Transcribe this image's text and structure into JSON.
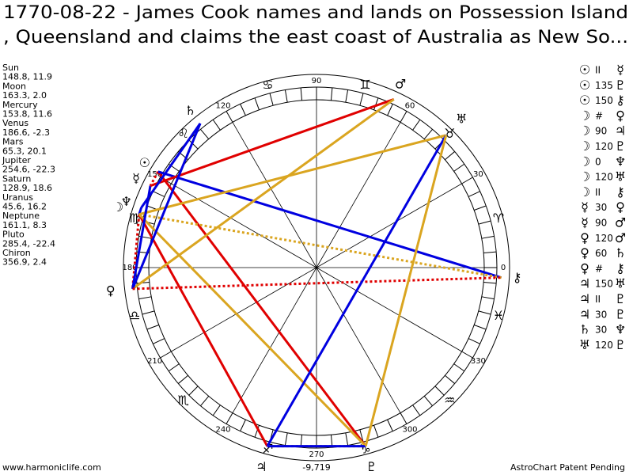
{
  "header": {
    "title_line1": "1770-08-22 - James Cook names and lands on Possession Island",
    "title_line2": ", Queensland and claims the east coast of Australia as New So..."
  },
  "planets": [
    {
      "name": "Sun",
      "glyph": "☉",
      "longitude": 148.8,
      "latitude": 11.9,
      "label": "148.8, 11.9"
    },
    {
      "name": "Moon",
      "glyph": "☽",
      "longitude": 163.3,
      "latitude": 2,
      "label": "163.3, 2.0"
    },
    {
      "name": "Mercury",
      "glyph": "☿",
      "longitude": 153.8,
      "latitude": 11.6,
      "label": "153.8, 11.6"
    },
    {
      "name": "Venus",
      "glyph": "♀",
      "longitude": 186.6,
      "latitude": -2.3,
      "label": "186.6, -2.3"
    },
    {
      "name": "Mars",
      "glyph": "♂",
      "longitude": 65.3,
      "latitude": 20.1,
      "label": "65.3, 20.1"
    },
    {
      "name": "Jupiter",
      "glyph": "♃",
      "longitude": 254.6,
      "latitude": -22.3,
      "label": "254.6, -22.3"
    },
    {
      "name": "Saturn",
      "glyph": "♄",
      "longitude": 128.9,
      "latitude": 18.6,
      "label": "128.9, 18.6"
    },
    {
      "name": "Uranus",
      "glyph": "♅",
      "longitude": 45.6,
      "latitude": 16.2,
      "label": "45.6, 16.2"
    },
    {
      "name": "Neptune",
      "glyph": "♆",
      "longitude": 161.1,
      "latitude": 8.3,
      "label": "161.1, 8.3"
    },
    {
      "name": "Pluto",
      "glyph": "♇",
      "longitude": 285.4,
      "latitude": -22.4,
      "label": "285.4, -22.4"
    },
    {
      "name": "Chiron",
      "glyph": "⚷",
      "longitude": 356.9,
      "latitude": 2.4,
      "label": "356.9, 2.4"
    }
  ],
  "aspects": [
    {
      "p1": "☉",
      "aspect": "II",
      "p2": "☿",
      "color": "#e00000",
      "dashed": true
    },
    {
      "p1": "☉",
      "aspect": "135",
      "p2": "♇",
      "color": "#e00000",
      "dashed": false
    },
    {
      "p1": "☉",
      "aspect": "150",
      "p2": "⚷",
      "color": "#0000e0",
      "dashed": false
    },
    {
      "p1": "☽",
      "aspect": "#",
      "p2": "♀",
      "color": "#e00000",
      "dashed": true
    },
    {
      "p1": "☽",
      "aspect": "90",
      "p2": "♃",
      "color": "#e00000",
      "dashed": false
    },
    {
      "p1": "☽",
      "aspect": "120",
      "p2": "♇",
      "color": "#daa520",
      "dashed": false
    },
    {
      "p1": "☽",
      "aspect": "0",
      "p2": "♆",
      "color": "#0000e0",
      "dashed": false
    },
    {
      "p1": "☽",
      "aspect": "120",
      "p2": "♅",
      "color": "#daa520",
      "dashed": false
    },
    {
      "p1": "☽",
      "aspect": "II",
      "p2": "⚷",
      "color": "#daa520",
      "dashed": true
    },
    {
      "p1": "☿",
      "aspect": "30",
      "p2": "♀",
      "color": "#0000e0",
      "dashed": false
    },
    {
      "p1": "☿",
      "aspect": "90",
      "p2": "♂",
      "color": "#e00000",
      "dashed": false
    },
    {
      "p1": "♀",
      "aspect": "120",
      "p2": "♂",
      "color": "#daa520",
      "dashed": false
    },
    {
      "p1": "♀",
      "aspect": "60",
      "p2": "♄",
      "color": "#0000e0",
      "dashed": false
    },
    {
      "p1": "♀",
      "aspect": "#",
      "p2": "⚷",
      "color": "#e00000",
      "dashed": true
    },
    {
      "p1": "♃",
      "aspect": "150",
      "p2": "♅",
      "color": "#0000e0",
      "dashed": false
    },
    {
      "p1": "♃",
      "aspect": "II",
      "p2": "♇",
      "color": "#daa520",
      "dashed": true
    },
    {
      "p1": "♃",
      "aspect": "30",
      "p2": "♇",
      "color": "#0000e0",
      "dashed": false
    },
    {
      "p1": "♄",
      "aspect": "30",
      "p2": "♆",
      "color": "#0000e0",
      "dashed": false
    },
    {
      "p1": "♅",
      "aspect": "120",
      "p2": "♇",
      "color": "#daa520",
      "dashed": false
    }
  ],
  "wheel": {
    "degrees": [
      0,
      30,
      60,
      90,
      120,
      150,
      180,
      210,
      240,
      270,
      300,
      330
    ],
    "signs": [
      "♈",
      "♉",
      "♊",
      "♋",
      "♌",
      "♍",
      "♎",
      "♏",
      "♐",
      "♑",
      "♒",
      "♓"
    ]
  },
  "footer": {
    "site": "www.harmoniclife.com",
    "score": "-9,719",
    "notice": "AstroChart Patent Pending"
  }
}
